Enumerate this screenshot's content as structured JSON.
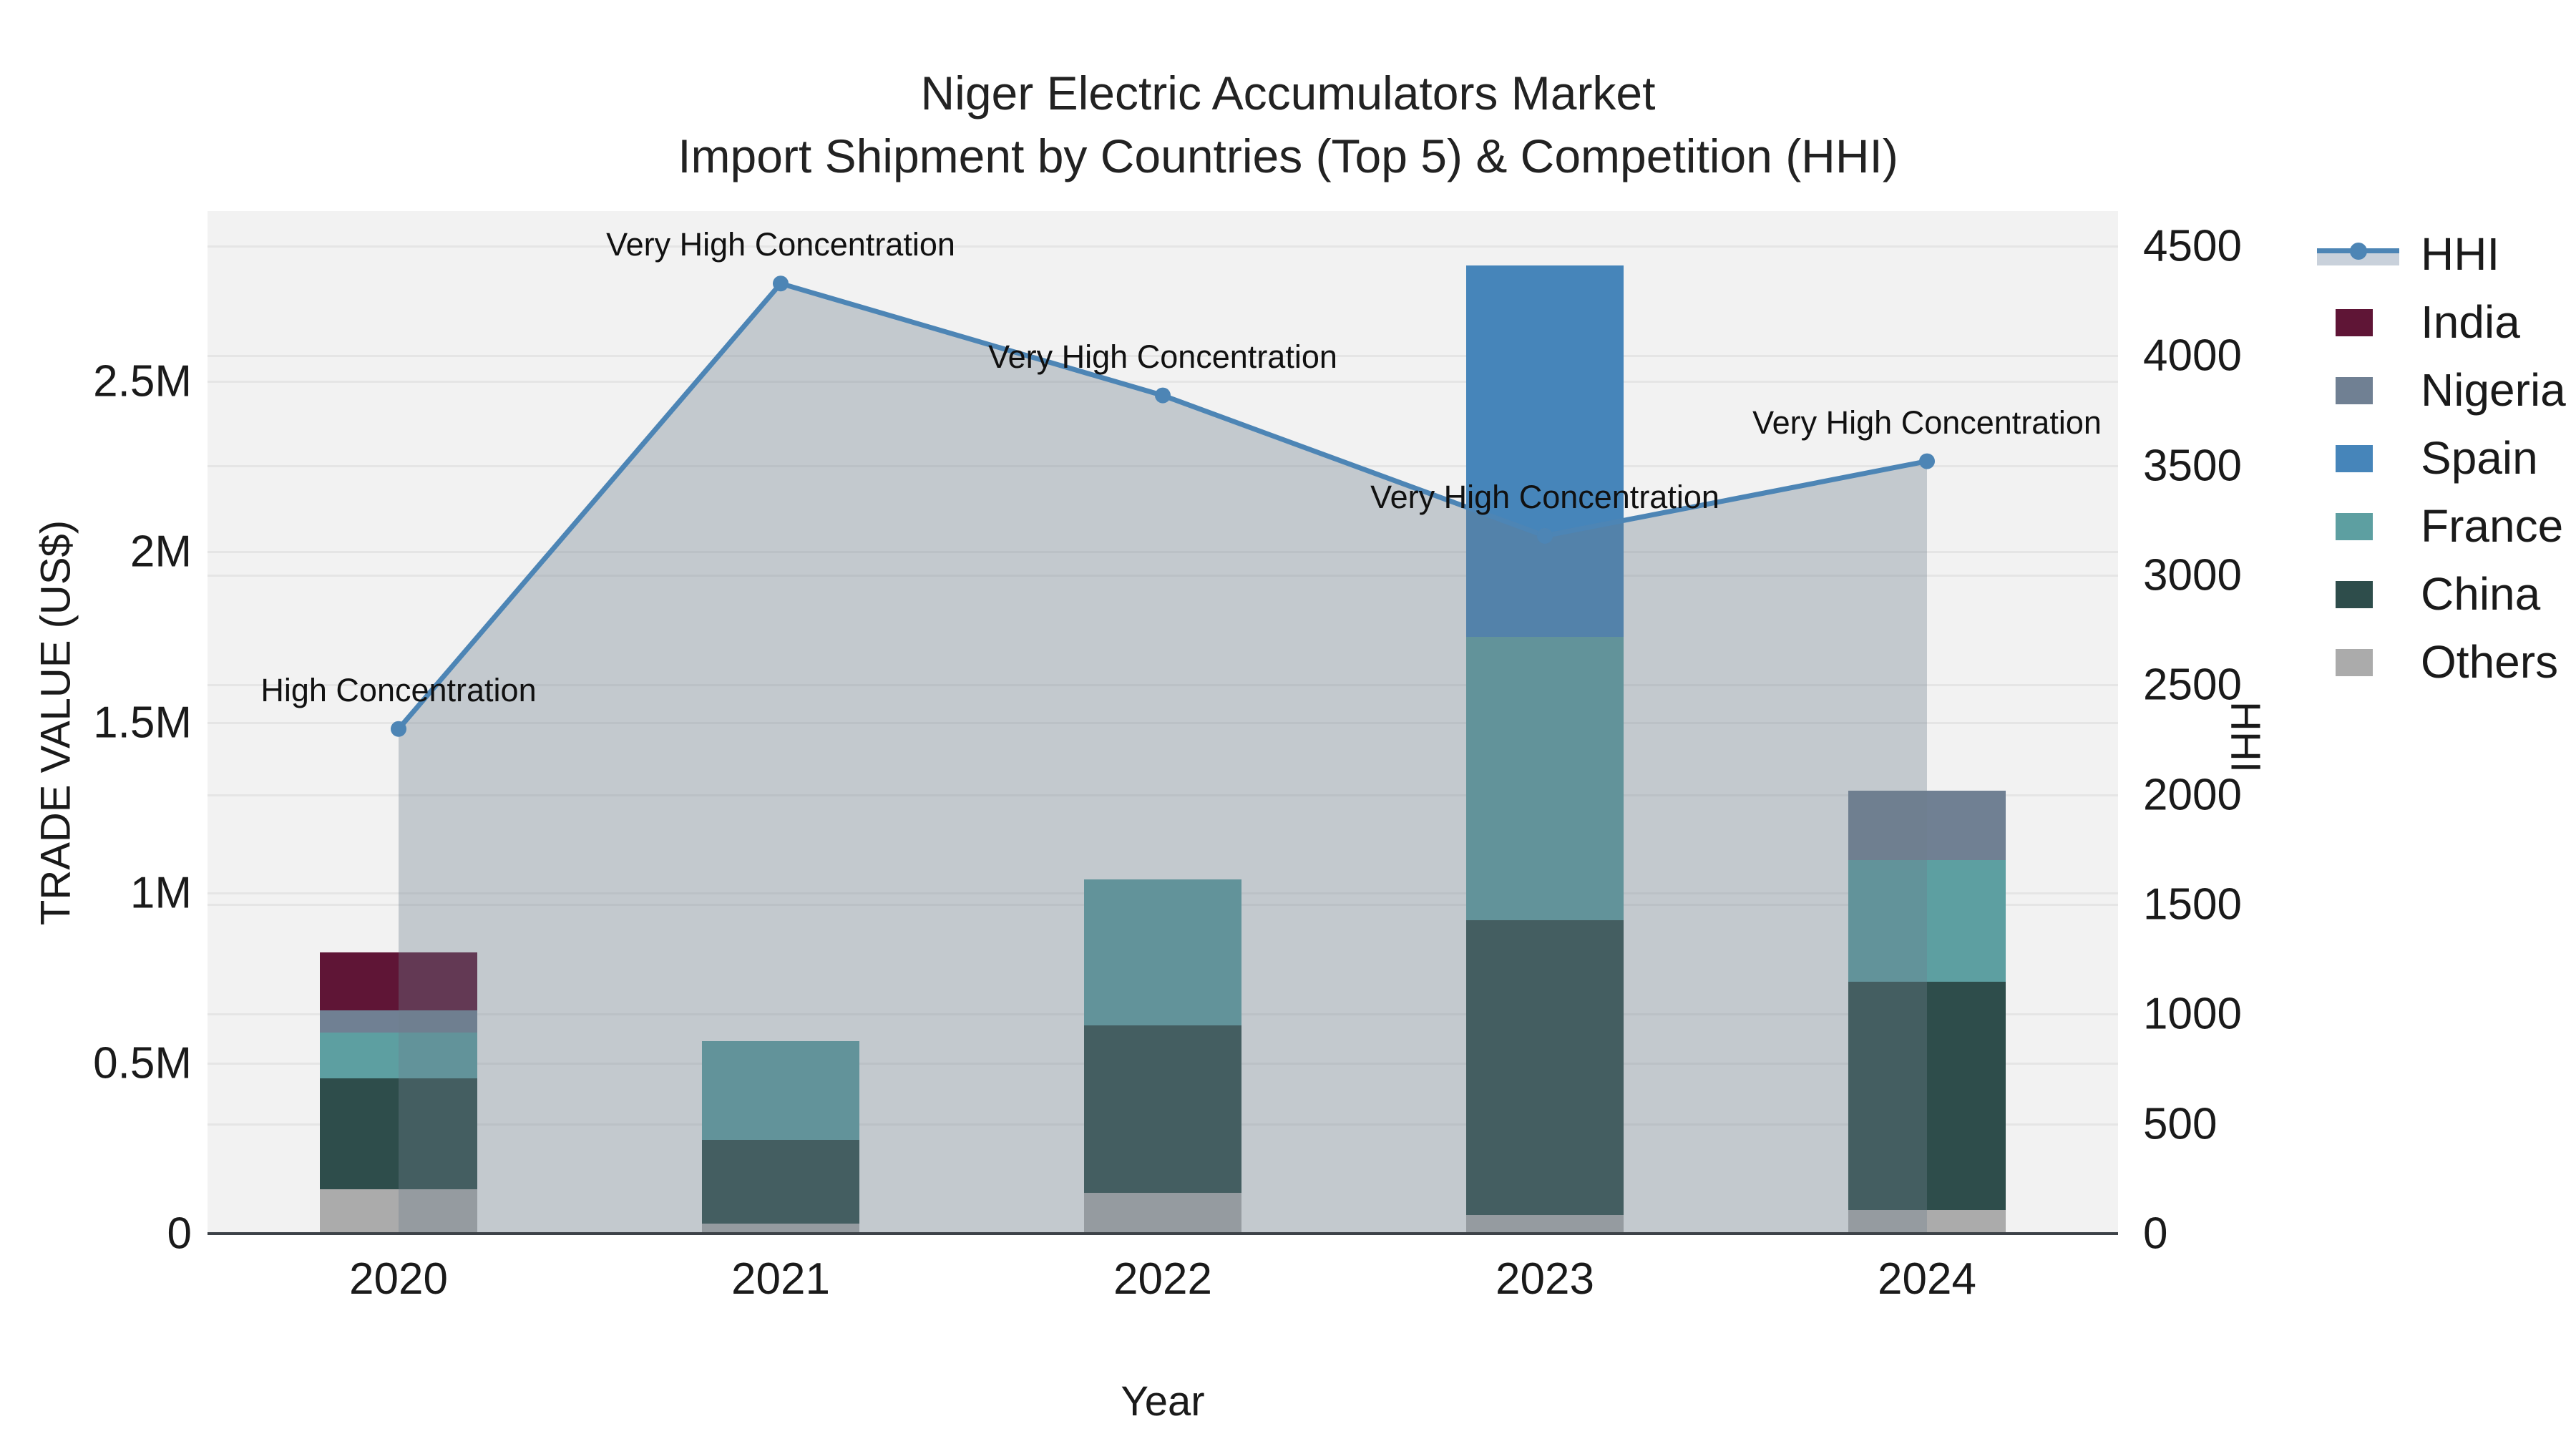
{
  "title": {
    "line1": "Niger Electric Accumulators Market",
    "line2": "Import Shipment by Countries (Top 5) & Competition (HHI)"
  },
  "chart_data": {
    "type": "bar",
    "subtype": "stacked-bars-with-line-area-overlay",
    "categories": [
      "2020",
      "2021",
      "2022",
      "2023",
      "2024"
    ],
    "xlabel": "Year",
    "ylabel_left": "TRADE VALUE (US$)",
    "ylabel_right": "HHI",
    "ylim_left": [
      0,
      3000000
    ],
    "ylim_right": [
      0,
      4660
    ],
    "grid": "on",
    "legend_position": "top-right-outside",
    "bar_series": [
      {
        "name": "Others",
        "color": "#ababab",
        "values": [
          130000,
          30000,
          120000,
          55000,
          70000
        ]
      },
      {
        "name": "China",
        "color": "#2e4d4b",
        "values": [
          325000,
          245000,
          490000,
          865000,
          670000
        ]
      },
      {
        "name": "France",
        "color": "#5d9fa1",
        "values": [
          135000,
          290000,
          430000,
          830000,
          355000
        ]
      },
      {
        "name": "Nigeria",
        "color": "#708093",
        "values": [
          65000,
          0,
          0,
          0,
          205000
        ]
      },
      {
        "name": "Spain",
        "color": "#4685ba",
        "values": [
          0,
          0,
          0,
          1090000,
          0
        ]
      },
      {
        "name": "India",
        "color": "#5f1536",
        "values": [
          170000,
          0,
          0,
          0,
          0
        ]
      }
    ],
    "line_series": {
      "name": "HHI",
      "color": "#4d85b5",
      "area_fill": "rgba(108,125,140,0.35)",
      "values": [
        2300,
        4330,
        3820,
        3180,
        3520
      ],
      "annotations": [
        "High Concentration",
        "Very High Concentration",
        "Very High Concentration",
        "Very High Concentration",
        "Very High Concentration"
      ]
    },
    "y_left_ticks": [
      {
        "v": 0,
        "label": "0"
      },
      {
        "v": 500000,
        "label": "0.5M"
      },
      {
        "v": 1000000,
        "label": "1M"
      },
      {
        "v": 1500000,
        "label": "1.5M"
      },
      {
        "v": 2000000,
        "label": "2M"
      },
      {
        "v": 2500000,
        "label": "2.5M"
      }
    ],
    "y_right_ticks": [
      {
        "v": 0,
        "label": "0"
      },
      {
        "v": 500,
        "label": "500"
      },
      {
        "v": 1000,
        "label": "1000"
      },
      {
        "v": 1500,
        "label": "1500"
      },
      {
        "v": 2000,
        "label": "2000"
      },
      {
        "v": 2500,
        "label": "2500"
      },
      {
        "v": 3000,
        "label": "3000"
      },
      {
        "v": 3500,
        "label": "3500"
      },
      {
        "v": 4000,
        "label": "4000"
      },
      {
        "v": 4500,
        "label": "4500"
      }
    ]
  },
  "legend": {
    "items": [
      {
        "label": "HHI",
        "type": "line",
        "color": "#4d85b5"
      },
      {
        "label": "India",
        "type": "swatch",
        "color": "#5f1536"
      },
      {
        "label": "Nigeria",
        "type": "swatch",
        "color": "#708093"
      },
      {
        "label": "Spain",
        "type": "swatch",
        "color": "#4685ba"
      },
      {
        "label": "France",
        "type": "swatch",
        "color": "#5d9fa1"
      },
      {
        "label": "China",
        "type": "swatch",
        "color": "#2e4d4b"
      },
      {
        "label": "Others",
        "type": "swatch",
        "color": "#ababab"
      }
    ]
  }
}
